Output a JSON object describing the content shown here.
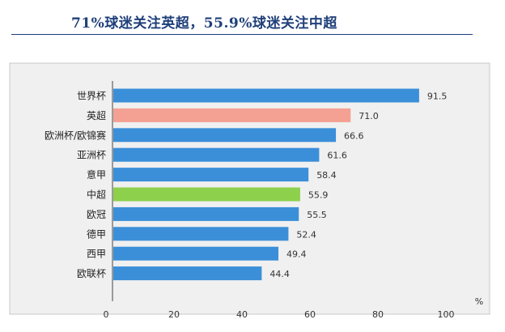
{
  "header": {
    "title": "71%球迷关注英超，55.9%球迷关注中超"
  },
  "chart_data": {
    "type": "bar",
    "orientation": "horizontal",
    "categories": [
      "世界杯",
      "英超",
      "欧洲杯/欧锦赛",
      "亚洲杯",
      "意甲",
      "中超",
      "欧冠",
      "德甲",
      "西甲",
      "欧联杯"
    ],
    "values": [
      91.5,
      71.0,
      66.6,
      61.6,
      58.4,
      55.9,
      55.5,
      52.4,
      49.4,
      44.4
    ],
    "value_labels": [
      "91.5",
      "71.0",
      "66.6",
      "61.6",
      "58.4",
      "55.9",
      "55.5",
      "52.4",
      "49.4",
      "44.4"
    ],
    "bar_colors": [
      "#3b8fd9",
      "#f4a092",
      "#3b8fd9",
      "#3b8fd9",
      "#3b8fd9",
      "#8cd04c",
      "#3b8fd9",
      "#3b8fd9",
      "#3b8fd9",
      "#3b8fd9"
    ],
    "x_ticks": [
      "0",
      "20",
      "40",
      "60",
      "80",
      "100"
    ],
    "x_unit": "%",
    "xlim": [
      0,
      100
    ],
    "grid": false,
    "plot_background": "#f0f0f0"
  }
}
